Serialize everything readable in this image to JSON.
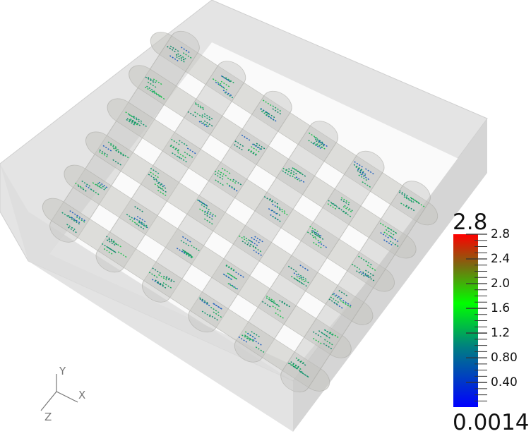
{
  "colorbar": {
    "range_max_label": "2.8",
    "range_min_label": "0.0014",
    "min": 0.0014,
    "max": 2.8,
    "ticks": [
      {
        "value": 2.8,
        "label": "2.8"
      },
      {
        "value": 2.4,
        "label": "2.4"
      },
      {
        "value": 2.0,
        "label": "2.0"
      },
      {
        "value": 1.6,
        "label": "1.6"
      },
      {
        "value": 1.2,
        "label": "1.2"
      },
      {
        "value": 0.8,
        "label": "0.80"
      },
      {
        "value": 0.4,
        "label": "0.40"
      }
    ],
    "colors": [
      "#0000ff",
      "#008080",
      "#00ff00",
      "#7a6a10",
      "#ff0000"
    ]
  },
  "axes_triad": {
    "x": "X",
    "y": "Y",
    "z": "Z"
  },
  "scene_colors": {
    "box": "#d8d8d8",
    "tube": "#c8c8c4",
    "streak": "#1aa860"
  }
}
